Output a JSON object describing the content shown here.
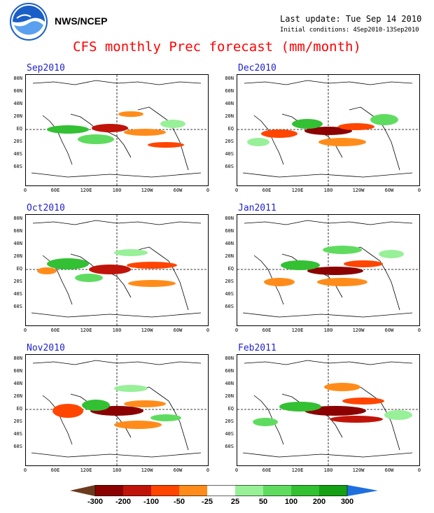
{
  "header": {
    "org_name": "NWS/NCEP",
    "last_update": "Last update: Tue Sep 14 2010",
    "initial_conditions": "Initial conditions: 4Sep2010-13Sep2010",
    "title": "CFS monthly Prec forecast (mm/month)"
  },
  "lat_labels": [
    "80N",
    "60N",
    "40N",
    "20N",
    "EQ",
    "20S",
    "40S",
    "60S"
  ],
  "lon_labels": [
    "0",
    "60E",
    "120E",
    "180",
    "120W",
    "60W",
    "0"
  ],
  "panels": [
    {
      "title": "Sep2010"
    },
    {
      "title": "Dec2010"
    },
    {
      "title": "Oct2010"
    },
    {
      "title": "Jan2011"
    },
    {
      "title": "Nov2010"
    },
    {
      "title": "Feb2011"
    }
  ],
  "colorbar": {
    "labels": [
      "-300",
      "-200",
      "-100",
      "-50",
      "-25",
      "25",
      "50",
      "100",
      "200",
      "300"
    ],
    "colors": {
      "dry_extreme": "#6b3a1e",
      "dry_300": "#8b0000",
      "dry_200": "#c0140a",
      "dry_100": "#ff4500",
      "dry_50": "#ff8c1a",
      "dry_25": "#ffa500",
      "neutral": "#ffffff",
      "wet_25": "#98f098",
      "wet_50": "#5fdc5f",
      "wet_100": "#33c033",
      "wet_200": "#14a014",
      "wet_extreme": "#1f6fe0"
    }
  }
}
